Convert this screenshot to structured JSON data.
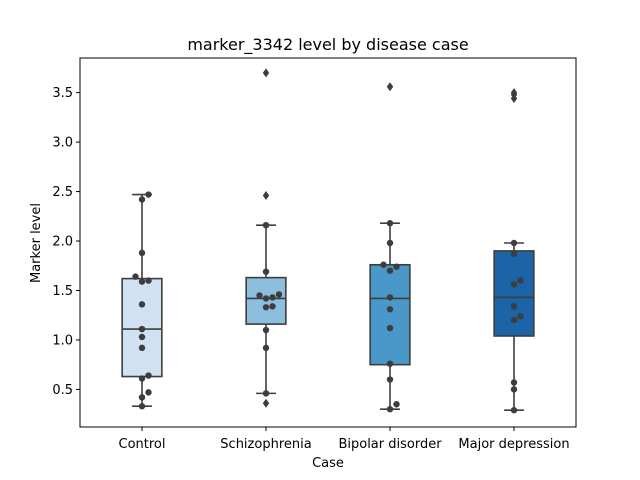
{
  "chart_data": {
    "type": "box",
    "title": "marker_3342 level by disease case",
    "xlabel": "Case",
    "ylabel": "Marker level",
    "ylim": [
      0.12,
      3.85
    ],
    "yticks": [
      "0.5",
      "1.0",
      "1.5",
      "2.0",
      "2.5",
      "3.0",
      "3.5"
    ],
    "grid": false,
    "categories": [
      "Control",
      "Schizophrenia",
      "Bipolar disorder",
      "Major depression"
    ],
    "colors": [
      "#d0e1f2",
      "#8cbfdd",
      "#4a98c9",
      "#1c64a8"
    ],
    "series": [
      {
        "category": "Control",
        "box": {
          "whisker_low": 0.33,
          "q1": 0.63,
          "median": 1.11,
          "q3": 1.62,
          "whisker_high": 2.47
        },
        "outliers": [],
        "points": [
          2.47,
          2.42,
          1.88,
          1.64,
          1.6,
          1.59,
          1.36,
          1.11,
          1.03,
          0.92,
          0.64,
          0.61,
          0.47,
          0.42,
          0.33
        ]
      },
      {
        "category": "Schizophrenia",
        "box": {
          "whisker_low": 0.46,
          "q1": 1.16,
          "median": 1.42,
          "q3": 1.63,
          "whisker_high": 2.16
        },
        "outliers": [
          3.7,
          2.46,
          0.36
        ],
        "points": [
          2.16,
          1.69,
          1.46,
          1.45,
          1.43,
          1.42,
          1.34,
          1.33,
          1.1,
          0.92,
          0.46
        ]
      },
      {
        "category": "Bipolar disorder",
        "box": {
          "whisker_low": 0.3,
          "q1": 0.75,
          "median": 1.42,
          "q3": 1.76,
          "whisker_high": 2.18
        },
        "outliers": [
          3.56
        ],
        "points": [
          2.18,
          1.98,
          1.76,
          1.74,
          1.7,
          1.43,
          1.31,
          1.12,
          0.76,
          0.6,
          0.35,
          0.3
        ]
      },
      {
        "category": "Major depression",
        "box": {
          "whisker_low": 0.29,
          "q1": 1.04,
          "median": 1.43,
          "q3": 1.9,
          "whisker_high": 1.98
        },
        "outliers": [
          3.5,
          3.48,
          3.44
        ],
        "points": [
          1.98,
          1.87,
          1.6,
          1.56,
          1.34,
          1.24,
          1.2,
          0.57,
          0.5,
          0.29
        ]
      }
    ]
  }
}
